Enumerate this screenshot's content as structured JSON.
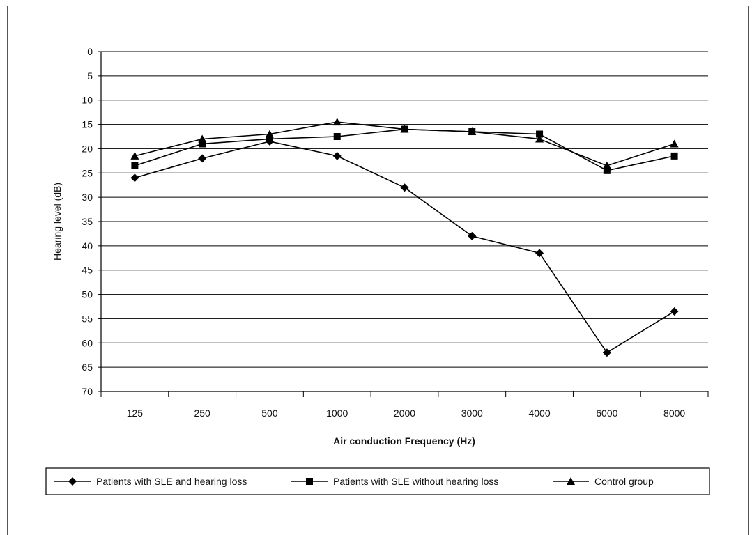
{
  "chart_data": {
    "type": "line",
    "categories": [
      "125",
      "250",
      "500",
      "1000",
      "2000",
      "3000",
      "4000",
      "6000",
      "8000"
    ],
    "xlabel": "Air conduction Frequency (Hz)",
    "ylabel": "Hearing level (dB)",
    "ylim": [
      0,
      70
    ],
    "y_inverted": true,
    "yticks": [
      "0",
      "5",
      "10",
      "15",
      "20",
      "25",
      "30",
      "35",
      "40",
      "45",
      "50",
      "55",
      "60",
      "65",
      "70"
    ],
    "grid": true,
    "legend_position": "bottom",
    "series": [
      {
        "name": "Patients with SLE and hearing loss",
        "marker": "diamond",
        "values": [
          26,
          22,
          18.5,
          21.5,
          28,
          38,
          41.5,
          62,
          53.5
        ]
      },
      {
        "name": "Patients with SLE without hearing loss",
        "marker": "square",
        "values": [
          23.5,
          19,
          18,
          17.5,
          16,
          16.5,
          17,
          24.5,
          21.5
        ]
      },
      {
        "name": "Control group",
        "marker": "triangle",
        "values": [
          21.5,
          18,
          17,
          14.5,
          16,
          16.5,
          18,
          23.5,
          19
        ]
      }
    ],
    "line_color": "#000000"
  }
}
